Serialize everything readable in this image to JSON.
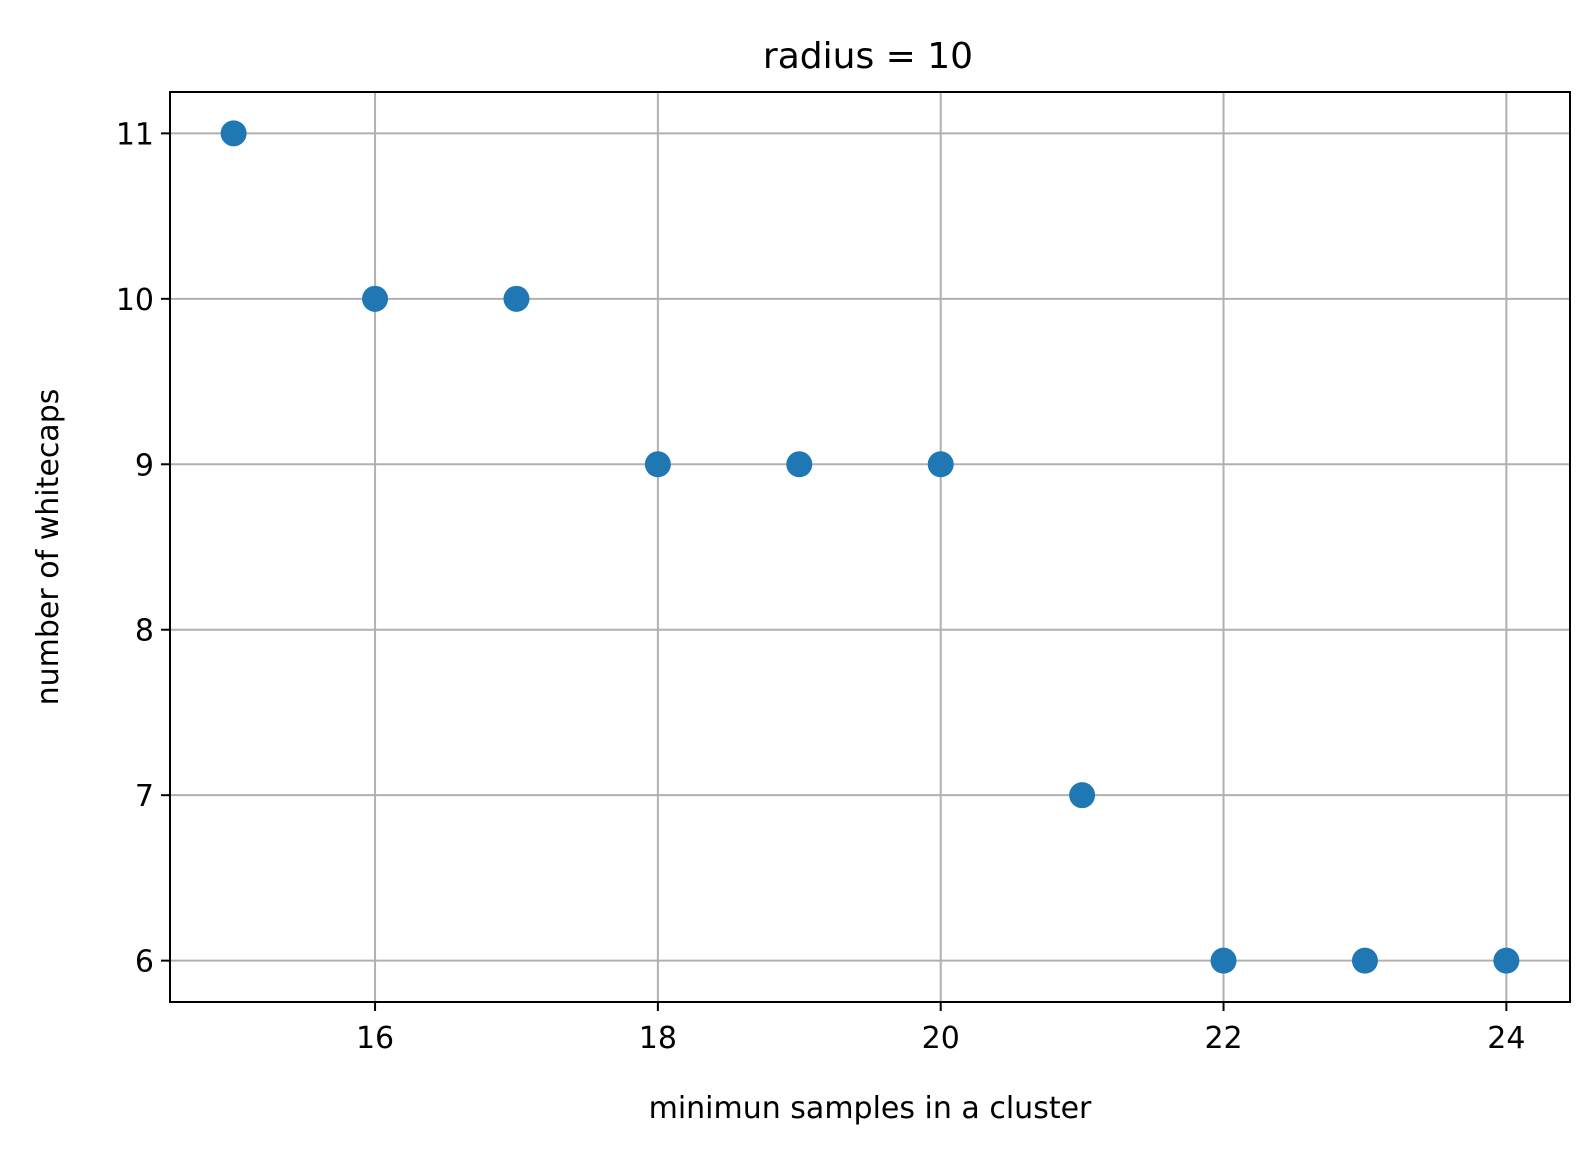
{
  "chart_data": {
    "type": "scatter",
    "title": "radius = 10",
    "xlabel": "minimun samples in a cluster",
    "ylabel": "number of whitecaps",
    "x": [
      15,
      16,
      17,
      18,
      19,
      20,
      21,
      22,
      23,
      24
    ],
    "y": [
      11,
      10,
      10,
      9,
      9,
      9,
      7,
      6,
      6,
      6
    ],
    "xlim": [
      14.55,
      24.45
    ],
    "ylim": [
      5.75,
      11.25
    ],
    "xticks": [
      16,
      18,
      20,
      22,
      24
    ],
    "yticks": [
      6,
      7,
      8,
      9,
      10,
      11
    ],
    "grid": true,
    "marker_color": "#1f77b4"
  }
}
